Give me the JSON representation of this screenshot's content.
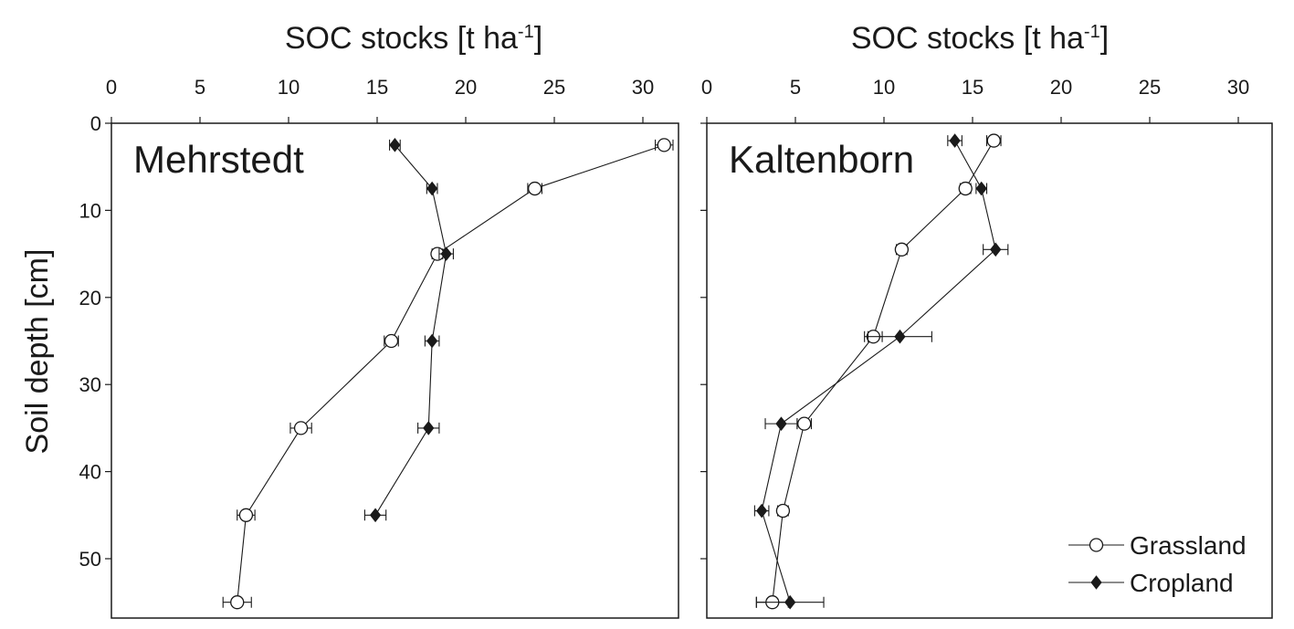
{
  "chart_data": {
    "type": "line",
    "shared": {
      "xlabel_main": "SOC stocks [t ha",
      "xlabel_sup": "-1",
      "xlabel_close": "]",
      "ylabel": "Soil depth [cm]",
      "xlim": [
        0,
        32
      ],
      "ylim": [
        0,
        57
      ],
      "xticks": [
        "0",
        "5",
        "10",
        "15",
        "20",
        "25",
        "30"
      ],
      "yticks": [
        "0",
        "10",
        "20",
        "30",
        "40",
        "50"
      ],
      "legend": {
        "position": "bottom-right",
        "entries": [
          "Grassland",
          "Cropland"
        ]
      }
    },
    "panels": [
      {
        "site": "Mehrstedt",
        "series": [
          {
            "name": "Grassland",
            "marker": "open-circle",
            "depth": [
              2.5,
              7.5,
              15,
              25,
              35,
              45,
              55
            ],
            "soc": [
              31.2,
              23.9,
              18.4,
              15.8,
              10.7,
              7.6,
              7.1
            ],
            "err": [
              0.5,
              0.4,
              0.3,
              0.4,
              0.6,
              0.5,
              0.8
            ]
          },
          {
            "name": "Cropland",
            "marker": "filled-diamond",
            "depth": [
              2.5,
              7.5,
              15,
              25,
              35,
              45
            ],
            "soc": [
              16.0,
              18.1,
              18.9,
              18.1,
              17.9,
              14.9
            ],
            "err": [
              0.3,
              0.3,
              0.4,
              0.4,
              0.6,
              0.6
            ]
          }
        ]
      },
      {
        "site": "Kaltenborn",
        "series": [
          {
            "name": "Grassland",
            "marker": "open-circle",
            "depth": [
              2,
              7.5,
              14.5,
              24.5,
              34.5,
              44.5,
              55
            ],
            "soc": [
              16.2,
              14.6,
              11.0,
              9.4,
              5.5,
              4.3,
              3.7
            ],
            "err": [
              0.4,
              0.3,
              0.3,
              0.5,
              0.4,
              0.3,
              0.9
            ]
          },
          {
            "name": "Cropland",
            "marker": "filled-diamond",
            "depth": [
              2,
              7.5,
              14.5,
              24.5,
              34.5,
              44.5,
              55
            ],
            "soc": [
              14.0,
              15.5,
              16.3,
              10.9,
              4.2,
              3.1,
              4.7
            ],
            "err": [
              0.4,
              0.3,
              0.7,
              1.8,
              0.9,
              0.4,
              1.9
            ]
          }
        ]
      }
    ]
  }
}
